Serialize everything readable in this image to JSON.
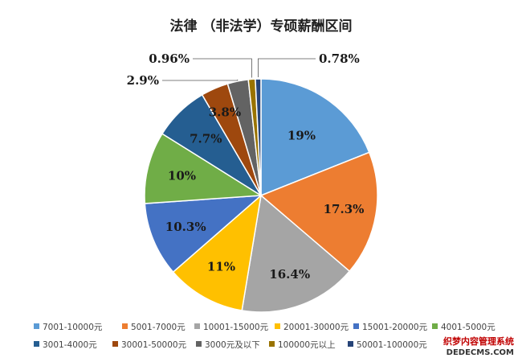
{
  "chart_data": {
    "type": "pie",
    "title": "法律 （非法学）专硕薪酬区间",
    "categories": [
      "7001-10000元",
      "5001-7000元",
      "10001-15000元",
      "20001-30000元",
      "15001-20000元",
      "4001-5000元",
      "3001-4000元",
      "30001-50000元",
      "3000元及以下",
      "100000元以上",
      "50001-100000元"
    ],
    "values": [
      19,
      17.3,
      16.4,
      11,
      10.3,
      10,
      7.7,
      3.8,
      2.9,
      0.96,
      0.78
    ],
    "labels": [
      "19%",
      "17.3%",
      "16.4%",
      "11%",
      "10.3%",
      "10%",
      "7.7%",
      "3.8%",
      "2.9%",
      "0.96%",
      "0.78%"
    ],
    "colors": [
      "#5b9bd5",
      "#ed7d31",
      "#a5a5a5",
      "#ffc000",
      "#4472c4",
      "#70ad47",
      "#255e91",
      "#9e480e",
      "#636363",
      "#997300",
      "#264478"
    ],
    "legend_placement": "bottom"
  },
  "watermark": {
    "line1": "织梦内容管理系统",
    "line2": "DEDECMS.COM"
  }
}
